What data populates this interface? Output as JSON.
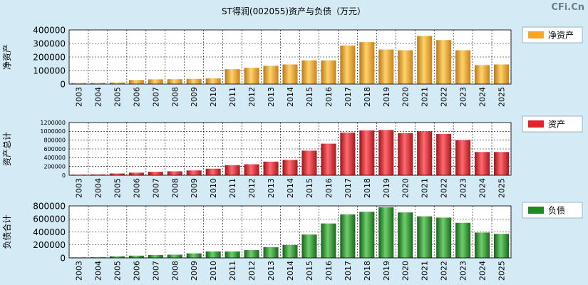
{
  "title": "ST得润(002055)资产与负债（万元）",
  "watermark": "CFi.Cn",
  "colors": {
    "background": "#d4ebf6",
    "plot_bg": "#ffffff",
    "grid": "#000000",
    "net_assets": "#f5a623",
    "assets": "#e8202a",
    "liabilities": "#1f8a1f"
  },
  "chart_data": [
    {
      "type": "bar",
      "ylabel": "净资产",
      "legend": "净资产",
      "legend_position": "right",
      "ylim": [
        0,
        400000
      ],
      "yticks": [
        0,
        100000,
        200000,
        300000,
        400000
      ],
      "categories": [
        "2003",
        "2004",
        "2005",
        "2006",
        "2007",
        "2008",
        "2009",
        "2010",
        "2011",
        "2012",
        "2013",
        "2014",
        "2015",
        "2016",
        "2017",
        "2018",
        "2019",
        "2020",
        "2021",
        "2022",
        "2023",
        "2024",
        "2025"
      ],
      "values": [
        8000,
        9000,
        12000,
        30000,
        35000,
        36000,
        38000,
        42000,
        110000,
        120000,
        135000,
        145000,
        175000,
        175000,
        285000,
        310000,
        255000,
        250000,
        355000,
        325000,
        250000,
        140000,
        145000
      ]
    },
    {
      "type": "bar",
      "ylabel": "资产总计",
      "legend": "资产",
      "legend_position": "right",
      "ylim": [
        0,
        1200000
      ],
      "yticks": [
        0,
        200000,
        400000,
        600000,
        800000,
        1000000,
        1200000
      ],
      "categories": [
        "2003",
        "2004",
        "2005",
        "2006",
        "2007",
        "2008",
        "2009",
        "2010",
        "2011",
        "2012",
        "2013",
        "2014",
        "2015",
        "2016",
        "2017",
        "2018",
        "2019",
        "2020",
        "2021",
        "2022",
        "2023",
        "2024",
        "2025"
      ],
      "values": [
        15000,
        20000,
        40000,
        60000,
        80000,
        90000,
        110000,
        150000,
        230000,
        250000,
        310000,
        350000,
        560000,
        720000,
        970000,
        1020000,
        1030000,
        960000,
        1000000,
        940000,
        800000,
        530000,
        530000
      ]
    },
    {
      "type": "bar",
      "ylabel": "负债合计",
      "legend": "负债",
      "legend_position": "right",
      "ylim": [
        0,
        800000
      ],
      "yticks": [
        0,
        200000,
        400000,
        600000,
        800000
      ],
      "categories": [
        "2003",
        "2004",
        "2005",
        "2006",
        "2007",
        "2008",
        "2009",
        "2010",
        "2011",
        "2012",
        "2013",
        "2014",
        "2015",
        "2016",
        "2017",
        "2018",
        "2019",
        "2020",
        "2021",
        "2022",
        "2023",
        "2024",
        "2025"
      ],
      "values": [
        8000,
        10000,
        25000,
        35000,
        45000,
        50000,
        70000,
        100000,
        100000,
        120000,
        165000,
        200000,
        360000,
        530000,
        670000,
        710000,
        780000,
        700000,
        640000,
        620000,
        540000,
        390000,
        370000
      ]
    }
  ]
}
